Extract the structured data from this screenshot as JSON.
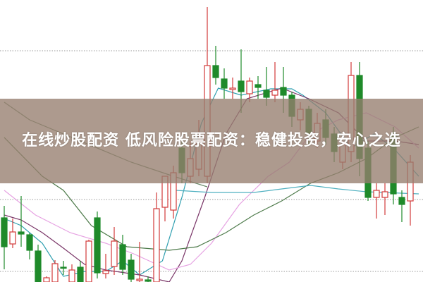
{
  "title": "在线炒股配资 低风险股票配资：稳健投资，安心之选",
  "chart_data": {
    "type": "candlestick",
    "title": "",
    "xlabel": "",
    "ylabel": "",
    "ylim": [
      0,
      400
    ],
    "grid": "dotted horizontal lines",
    "gridlines": [
      328,
      117,
      15
    ],
    "colors": {
      "up": "#d23a3a",
      "down": "#1f8a2a",
      "grid": "#999999"
    },
    "candles": [
      [
        91,
        50,
        108,
        18
      ],
      [
        54,
        71,
        90,
        48
      ],
      [
        71,
        68,
        122,
        50
      ],
      [
        67,
        45,
        70,
        32
      ],
      [
        44,
        0,
        53,
        0
      ],
      [
        0,
        6,
        8,
        0
      ],
      [
        0,
        26,
        31,
        0
      ],
      [
        21,
        20,
        30,
        10
      ],
      [
        0,
        17,
        25,
        0
      ],
      [
        21,
        0,
        30,
        0
      ],
      [
        0,
        58,
        60,
        0
      ],
      [
        91,
        13,
        100,
        5
      ],
      [
        12,
        16,
        40,
        5
      ],
      [
        22,
        58,
        78,
        10
      ],
      [
        53,
        18,
        67,
        10
      ],
      [
        31,
        4,
        40,
        0
      ],
      [
        2,
        4,
        57,
        0
      ],
      [
        3,
        1,
        8,
        0
      ],
      [
        0,
        104,
        127,
        0
      ],
      [
        106,
        150,
        150,
        86
      ],
      [
        102,
        155,
        165,
        90
      ],
      [
        190,
        155,
        200,
        140
      ],
      [
        150,
        175,
        200,
        140
      ],
      [
        160,
        200,
        230,
        150
      ],
      [
        150,
        307,
        390,
        140
      ],
      [
        307,
        290,
        335,
        280
      ],
      [
        288,
        275,
        303,
        260
      ],
      [
        273,
        275,
        290,
        260
      ],
      [
        285,
        270,
        330,
        240
      ],
      [
        267,
        285,
        290,
        255
      ],
      [
        280,
        276,
        292,
        260
      ],
      [
        272,
        262,
        305,
        250
      ],
      [
        265,
        272,
        312,
        255
      ],
      [
        276,
        265,
        305,
        240
      ],
      [
        265,
        235,
        270,
        220
      ],
      [
        230,
        245,
        255,
        215
      ],
      [
        245,
        210,
        250,
        195
      ],
      [
        200,
        225,
        240,
        190
      ],
      [
        230,
        205,
        245,
        195
      ],
      [
        210,
        185,
        220,
        170
      ],
      [
        170,
        195,
        200,
        160
      ],
      [
        185,
        293,
        312,
        170
      ],
      [
        293,
        175,
        312,
        150
      ],
      [
        190,
        120,
        200,
        115
      ],
      [
        120,
        130,
        140,
        90
      ],
      [
        120,
        128,
        140,
        95
      ],
      [
        210,
        125,
        220,
        110
      ],
      [
        120,
        110,
        130,
        85
      ],
      [
        115,
        170,
        180,
        80
      ]
    ],
    "moving_averages": [
      {
        "color": "#2f9fb0",
        "points": [
          [
            0,
            90
          ],
          [
            2,
            80
          ],
          [
            4.5,
            55
          ],
          [
            7,
            8
          ],
          [
            9.5,
            15
          ],
          [
            12,
            15
          ],
          [
            14,
            30
          ],
          [
            16,
            10
          ],
          [
            18.7,
            30
          ],
          [
            21,
            120
          ],
          [
            23.3,
            225
          ],
          [
            25.3,
            275
          ],
          [
            28,
            265
          ],
          [
            31.5,
            274
          ],
          [
            34,
            274
          ],
          [
            35.3,
            265
          ],
          [
            38,
            240
          ],
          [
            41,
            190
          ],
          [
            43.7,
            210
          ],
          [
            46,
            190
          ],
          [
            49,
            150
          ]
        ]
      },
      {
        "color": "#7a3668",
        "points": [
          [
            0,
            95
          ],
          [
            2,
            88
          ],
          [
            4.5,
            70
          ],
          [
            7,
            48
          ],
          [
            9.5,
            25
          ],
          [
            12,
            17
          ],
          [
            16,
            10
          ],
          [
            19.5,
            0
          ],
          [
            21,
            30
          ],
          [
            23.7,
            120
          ],
          [
            26.2,
            210
          ],
          [
            28.7,
            260
          ],
          [
            32.8,
            275
          ],
          [
            36,
            260
          ],
          [
            39.5,
            240
          ],
          [
            42.8,
            200
          ],
          [
            46.2,
            200
          ],
          [
            49,
            195
          ]
        ]
      },
      {
        "color": "#e6a2e2",
        "points": [
          [
            0,
            130
          ],
          [
            3.7,
            95
          ],
          [
            7.8,
            70
          ],
          [
            12,
            55
          ],
          [
            15.3,
            40
          ],
          [
            19.5,
            17
          ],
          [
            22,
            25
          ],
          [
            24.5,
            55
          ],
          [
            27.8,
            110
          ],
          [
            31.2,
            150
          ],
          [
            33.7,
            170
          ],
          [
            36.2,
            210
          ],
          [
            39.5,
            230
          ],
          [
            42.8,
            240
          ],
          [
            46.2,
            220
          ],
          [
            49,
            190
          ]
        ]
      },
      {
        "color": "#4d7a4a",
        "points": [
          [
            0,
            205
          ],
          [
            4.5,
            150
          ],
          [
            7,
            130
          ],
          [
            10.3,
            80
          ],
          [
            14.5,
            50
          ],
          [
            19.5,
            45
          ],
          [
            22.8,
            50
          ],
          [
            26.2,
            70
          ],
          [
            29.5,
            95
          ],
          [
            32.8,
            115
          ],
          [
            36.2,
            140
          ],
          [
            39.5,
            155
          ],
          [
            42.8,
            175
          ],
          [
            46.2,
            205
          ],
          [
            49,
            220
          ]
        ]
      },
      {
        "color": "#4fb0c0",
        "points": [
          [
            20.3,
            130
          ],
          [
            24.5,
            127
          ],
          [
            29.5,
            127
          ],
          [
            32.8,
            132
          ],
          [
            36.2,
            137
          ],
          [
            39.5,
            132
          ],
          [
            42.8,
            128
          ],
          [
            49,
            125
          ]
        ]
      },
      {
        "color": "#6a8a6a",
        "points": [
          [
            0,
            255
          ],
          [
            3,
            230
          ],
          [
            6,
            215
          ],
          [
            10,
            195
          ],
          [
            15,
            170
          ],
          [
            20,
            150
          ],
          [
            24,
            135
          ]
        ]
      }
    ]
  }
}
